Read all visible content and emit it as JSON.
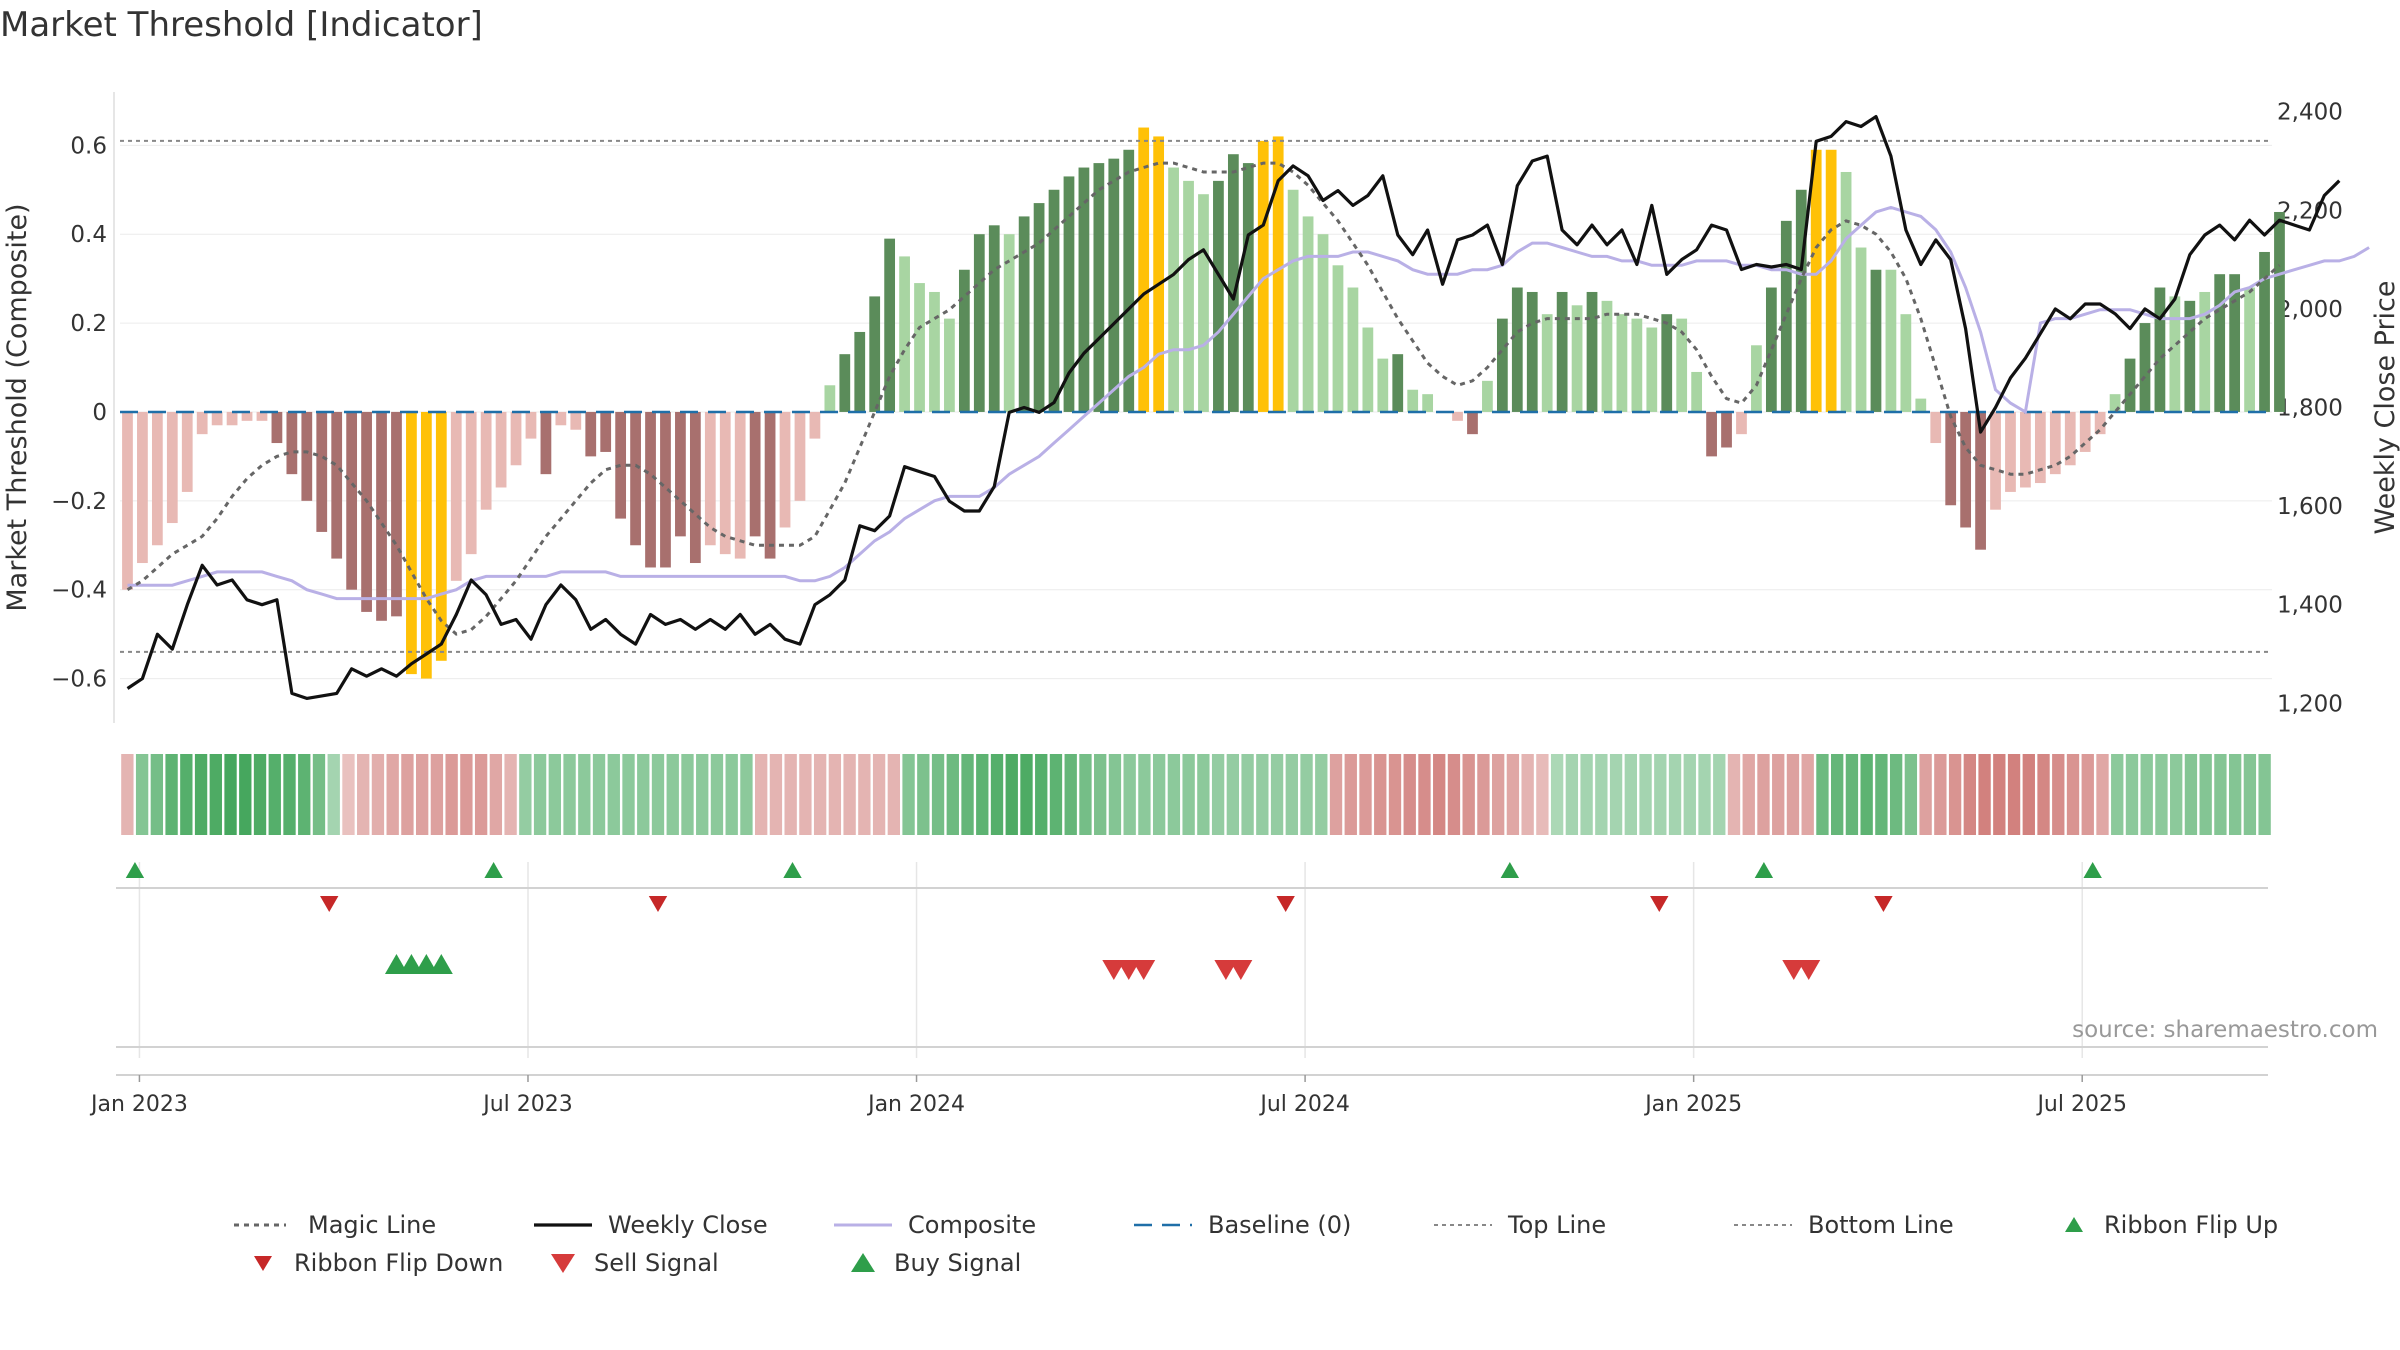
{
  "title": "Market Threshold [Indicator]",
  "source_label": "source: sharemaestro.com",
  "colors": {
    "dark_green": "#5b8c5a",
    "light_green": "#a8d5a2",
    "dark_red": "#a8706e",
    "light_red": "#e8b9b4",
    "gold": "#ffc107",
    "close_line": "#111111",
    "composite_line": "#b9b0e6",
    "magic_line": "#666666",
    "baseline": "#1f6fa8",
    "buy": "#2e9e4a",
    "sell": "#d63b3b",
    "flip_down": "#c62828"
  },
  "chart_data": {
    "type": "line",
    "title": "Market Threshold [Indicator]",
    "ylabel": "Market Threshold (Composite)",
    "ylabel_right": "Weekly Close Price",
    "ylim": [
      -0.7,
      0.72
    ],
    "ylim_right": [
      1160,
      2440
    ],
    "yticks": [
      0.6,
      0.4,
      0.2,
      0,
      -0.2,
      -0.4,
      -0.6
    ],
    "ytick_labels": [
      "0.6",
      "0.4",
      "0.2",
      "0",
      "−0.2",
      "−0.4",
      "−0.6"
    ],
    "yticks_right": [
      2400,
      2200,
      2000,
      1800,
      1600,
      1400,
      1200
    ],
    "ytick_labels_right": [
      "2,400",
      "2,200",
      "2,000",
      "1,800",
      "1,600",
      "1,400",
      "1,200"
    ],
    "x_range_weeks": [
      0,
      144
    ],
    "xticks_weeks": [
      1.3,
      27.3,
      53.3,
      79.3,
      105.3,
      131.3
    ],
    "xtick_labels": [
      "Jan 2023",
      "Jul 2023",
      "Jan 2024",
      "Jul 2024",
      "Jan 2025",
      "Jul 2025"
    ],
    "top_line": 0.61,
    "bottom_line": -0.54,
    "bars": [
      -0.4,
      -0.34,
      -0.3,
      -0.25,
      -0.18,
      -0.05,
      -0.03,
      -0.03,
      -0.02,
      -0.02,
      -0.07,
      -0.14,
      -0.2,
      -0.27,
      -0.33,
      -0.4,
      -0.45,
      -0.47,
      -0.46,
      -0.59,
      -0.6,
      -0.56,
      -0.38,
      -0.32,
      -0.22,
      -0.17,
      -0.12,
      -0.06,
      -0.14,
      -0.03,
      -0.04,
      -0.1,
      -0.09,
      -0.24,
      -0.3,
      -0.35,
      -0.35,
      -0.28,
      -0.34,
      -0.3,
      -0.32,
      -0.33,
      -0.28,
      -0.33,
      -0.26,
      -0.2,
      -0.06,
      0.06,
      0.13,
      0.18,
      0.26,
      0.39,
      0.35,
      0.29,
      0.27,
      0.21,
      0.32,
      0.4,
      0.42,
      0.4,
      0.44,
      0.47,
      0.5,
      0.53,
      0.55,
      0.56,
      0.57,
      0.59,
      0.64,
      0.62,
      0.55,
      0.52,
      0.49,
      0.52,
      0.58,
      0.56,
      0.61,
      0.62,
      0.5,
      0.44,
      0.4,
      0.33,
      0.28,
      0.19,
      0.12,
      0.13,
      0.05,
      0.04,
      0.0,
      -0.02,
      -0.05,
      0.07,
      0.21,
      0.28,
      0.27,
      0.22,
      0.27,
      0.24,
      0.27,
      0.25,
      0.22,
      0.21,
      0.19,
      0.22,
      0.21,
      0.09,
      -0.1,
      -0.08,
      -0.05,
      0.15,
      0.28,
      0.43,
      0.5,
      0.59,
      0.59,
      0.54,
      0.37,
      0.32,
      0.32,
      0.22,
      0.03,
      -0.07,
      -0.21,
      -0.26,
      -0.31,
      -0.22,
      -0.18,
      -0.17,
      -0.16,
      -0.14,
      -0.12,
      -0.09,
      -0.05,
      0.04,
      0.12,
      0.2,
      0.28,
      0.26,
      0.25,
      0.27,
      0.31,
      0.31,
      0.28,
      0.36,
      0.45
    ],
    "bar_styles": [
      "lr",
      "lr",
      "lr",
      "lr",
      "lr",
      "lr",
      "lr",
      "lr",
      "lr",
      "lr",
      "dr",
      "dr",
      "dr",
      "dr",
      "dr",
      "dr",
      "dr",
      "dr",
      "dr",
      "g",
      "g",
      "g",
      "lr",
      "lr",
      "lr",
      "lr",
      "lr",
      "lr",
      "dr",
      "lr",
      "lr",
      "dr",
      "dr",
      "dr",
      "dr",
      "dr",
      "dr",
      "dr",
      "dr",
      "lr",
      "lr",
      "lr",
      "dr",
      "dr",
      "lr",
      "lr",
      "lr",
      "lg",
      "dg",
      "dg",
      "dg",
      "dg",
      "lg",
      "lg",
      "lg",
      "lg",
      "dg",
      "dg",
      "dg",
      "lg",
      "dg",
      "dg",
      "dg",
      "dg",
      "dg",
      "dg",
      "dg",
      "dg",
      "g",
      "g",
      "lg",
      "lg",
      "lg",
      "dg",
      "dg",
      "dg",
      "g",
      "g",
      "lg",
      "lg",
      "lg",
      "lg",
      "lg",
      "lg",
      "lg",
      "dg",
      "lg",
      "lg",
      "lg",
      "lr",
      "dr",
      "lg",
      "dg",
      "dg",
      "dg",
      "lg",
      "dg",
      "lg",
      "dg",
      "lg",
      "lg",
      "lg",
      "lg",
      "dg",
      "lg",
      "lg",
      "dr",
      "dr",
      "lr",
      "lg",
      "dg",
      "dg",
      "dg",
      "g",
      "g",
      "lg",
      "lg",
      "dg",
      "lg",
      "lg",
      "lg",
      "lr",
      "dr",
      "dr",
      "dr",
      "lr",
      "lr",
      "lr",
      "lr",
      "lr",
      "lr",
      "lr",
      "lr",
      "lg",
      "dg",
      "dg",
      "dg",
      "lg",
      "dg",
      "lg",
      "dg",
      "dg",
      "lg",
      "dg",
      "dg"
    ],
    "series": [
      {
        "name": "Magic Line",
        "axis": "left",
        "values": [
          -0.4,
          -0.38,
          -0.35,
          -0.32,
          -0.3,
          -0.28,
          -0.24,
          -0.19,
          -0.15,
          -0.12,
          -0.1,
          -0.09,
          -0.09,
          -0.1,
          -0.12,
          -0.16,
          -0.2,
          -0.25,
          -0.3,
          -0.36,
          -0.42,
          -0.47,
          -0.5,
          -0.49,
          -0.46,
          -0.42,
          -0.38,
          -0.33,
          -0.28,
          -0.24,
          -0.2,
          -0.16,
          -0.13,
          -0.12,
          -0.12,
          -0.14,
          -0.17,
          -0.2,
          -0.23,
          -0.26,
          -0.28,
          -0.29,
          -0.3,
          -0.3,
          -0.3,
          -0.3,
          -0.28,
          -0.22,
          -0.16,
          -0.08,
          0.0,
          0.08,
          0.14,
          0.19,
          0.21,
          0.23,
          0.26,
          0.29,
          0.32,
          0.34,
          0.36,
          0.38,
          0.41,
          0.44,
          0.47,
          0.5,
          0.52,
          0.54,
          0.55,
          0.56,
          0.56,
          0.55,
          0.54,
          0.54,
          0.54,
          0.55,
          0.56,
          0.56,
          0.54,
          0.51,
          0.47,
          0.43,
          0.38,
          0.33,
          0.27,
          0.21,
          0.16,
          0.11,
          0.08,
          0.06,
          0.07,
          0.1,
          0.14,
          0.18,
          0.2,
          0.21,
          0.21,
          0.21,
          0.21,
          0.22,
          0.22,
          0.22,
          0.21,
          0.2,
          0.18,
          0.14,
          0.08,
          0.03,
          0.02,
          0.06,
          0.14,
          0.22,
          0.3,
          0.37,
          0.41,
          0.43,
          0.42,
          0.4,
          0.36,
          0.3,
          0.21,
          0.1,
          -0.01,
          -0.08,
          -0.12,
          -0.13,
          -0.14,
          -0.14,
          -0.13,
          -0.12,
          -0.1,
          -0.07,
          -0.04,
          0.0,
          0.04,
          0.08,
          0.12,
          0.15,
          0.18,
          0.21,
          0.23,
          0.25,
          0.27,
          0.3,
          0.33
        ]
      },
      {
        "name": "Weekly Close",
        "axis": "right",
        "values": [
          1230,
          1250,
          1340,
          1310,
          1400,
          1480,
          1440,
          1450,
          1410,
          1400,
          1410,
          1220,
          1210,
          1215,
          1220,
          1270,
          1255,
          1270,
          1255,
          1280,
          1300,
          1320,
          1380,
          1450,
          1420,
          1360,
          1370,
          1330,
          1400,
          1440,
          1410,
          1350,
          1370,
          1340,
          1320,
          1380,
          1360,
          1370,
          1350,
          1370,
          1350,
          1380,
          1340,
          1360,
          1330,
          1320,
          1400,
          1420,
          1450,
          1560,
          1550,
          1580,
          1680,
          1670,
          1660,
          1610,
          1590,
          1590,
          1640,
          1790,
          1800,
          1790,
          1810,
          1870,
          1910,
          1940,
          1970,
          2000,
          2030,
          2050,
          2070,
          2100,
          2120,
          2070,
          2020,
          2150,
          2170,
          2260,
          2290,
          2270,
          2220,
          2240,
          2210,
          2230,
          2270,
          2150,
          2110,
          2160,
          2050,
          2140,
          2150,
          2170,
          2090,
          2250,
          2300,
          2310,
          2160,
          2130,
          2170,
          2130,
          2160,
          2090,
          2210,
          2070,
          2100,
          2120,
          2170,
          2160,
          2080,
          2090,
          2085,
          2090,
          2080,
          2340,
          2350,
          2380,
          2370,
          2390,
          2310,
          2160,
          2090,
          2140,
          2100,
          1960,
          1750,
          1800,
          1860,
          1900,
          1950,
          2000,
          1980,
          2010,
          2010,
          1990,
          1960,
          2000,
          1980,
          2020,
          2110,
          2150,
          2170,
          2140,
          2180,
          2150,
          2180,
          2170,
          2160,
          2230,
          2260
        ],
        "__values_note": ""
      },
      {
        "name": "Composite",
        "axis": "left",
        "values": [
          -0.39,
          -0.39,
          -0.39,
          -0.39,
          -0.38,
          -0.37,
          -0.36,
          -0.36,
          -0.36,
          -0.36,
          -0.37,
          -0.38,
          -0.4,
          -0.41,
          -0.42,
          -0.42,
          -0.42,
          -0.42,
          -0.42,
          -0.42,
          -0.42,
          -0.41,
          -0.4,
          -0.38,
          -0.37,
          -0.37,
          -0.37,
          -0.37,
          -0.37,
          -0.36,
          -0.36,
          -0.36,
          -0.36,
          -0.37,
          -0.37,
          -0.37,
          -0.37,
          -0.37,
          -0.37,
          -0.37,
          -0.37,
          -0.37,
          -0.37,
          -0.37,
          -0.37,
          -0.38,
          -0.38,
          -0.37,
          -0.35,
          -0.32,
          -0.29,
          -0.27,
          -0.24,
          -0.22,
          -0.2,
          -0.19,
          -0.19,
          -0.19,
          -0.17,
          -0.14,
          -0.12,
          -0.1,
          -0.07,
          -0.04,
          -0.01,
          0.02,
          0.05,
          0.08,
          0.1,
          0.13,
          0.14,
          0.14,
          0.15,
          0.18,
          0.22,
          0.26,
          0.3,
          0.32,
          0.34,
          0.35,
          0.35,
          0.35,
          0.36,
          0.36,
          0.35,
          0.34,
          0.32,
          0.31,
          0.31,
          0.31,
          0.32,
          0.32,
          0.33,
          0.36,
          0.38,
          0.38,
          0.37,
          0.36,
          0.35,
          0.35,
          0.34,
          0.34,
          0.33,
          0.33,
          0.33,
          0.34,
          0.34,
          0.34,
          0.33,
          0.33,
          0.32,
          0.32,
          0.31,
          0.31,
          0.34,
          0.39,
          0.42,
          0.45,
          0.46,
          0.45,
          0.44,
          0.41,
          0.36,
          0.28,
          0.18,
          0.05,
          0.02,
          0.0,
          0.2,
          0.21,
          0.21,
          0.22,
          0.23,
          0.23,
          0.23,
          0.22,
          0.21,
          0.21,
          0.21,
          0.22,
          0.24,
          0.27,
          0.28,
          0.3,
          0.31,
          0.32,
          0.33,
          0.34,
          0.34,
          0.35,
          0.37
        ]
      }
    ],
    "ribbon": [
      -0.3,
      0.5,
      0.6,
      0.75,
      0.8,
      0.85,
      0.85,
      0.9,
      0.9,
      0.85,
      0.8,
      0.8,
      0.75,
      0.6,
      0.3,
      -0.2,
      -0.3,
      -0.35,
      -0.4,
      -0.45,
      -0.45,
      -0.45,
      -0.5,
      -0.5,
      -0.5,
      -0.4,
      -0.3,
      0.4,
      0.45,
      0.45,
      0.45,
      0.45,
      0.45,
      0.45,
      0.45,
      0.45,
      0.45,
      0.45,
      0.45,
      0.45,
      0.45,
      0.45,
      0.45,
      -0.3,
      -0.3,
      -0.3,
      -0.3,
      -0.3,
      -0.3,
      -0.3,
      -0.3,
      -0.3,
      -0.3,
      0.5,
      0.55,
      0.6,
      0.65,
      0.7,
      0.75,
      0.8,
      0.85,
      0.85,
      0.8,
      0.75,
      0.7,
      0.6,
      0.55,
      0.5,
      0.45,
      0.45,
      0.45,
      0.45,
      0.45,
      0.45,
      0.4,
      0.4,
      0.4,
      0.4,
      0.4,
      0.4,
      0.4,
      0.4,
      -0.45,
      -0.5,
      -0.5,
      -0.55,
      -0.55,
      -0.6,
      -0.6,
      -0.65,
      -0.6,
      -0.55,
      -0.5,
      -0.45,
      -0.4,
      -0.3,
      -0.25,
      0.25,
      0.3,
      0.3,
      0.3,
      0.3,
      0.3,
      0.3,
      0.3,
      0.3,
      0.3,
      0.3,
      0.3,
      -0.3,
      -0.4,
      -0.45,
      -0.45,
      -0.45,
      -0.4,
      0.65,
      0.7,
      0.7,
      0.75,
      0.7,
      0.65,
      0.55,
      -0.45,
      -0.5,
      -0.55,
      -0.65,
      -0.7,
      -0.7,
      -0.7,
      -0.7,
      -0.65,
      -0.6,
      -0.55,
      -0.5,
      -0.4,
      0.45,
      0.45,
      0.45,
      0.45,
      0.45,
      0.5,
      0.5,
      0.5,
      0.5,
      0.5,
      0.5
    ],
    "ribbon_flip_up_weeks": [
      1,
      25,
      45,
      93,
      110,
      132
    ],
    "ribbon_flip_down_weeks": [
      14,
      36,
      78,
      103,
      118
    ],
    "buy_signal_weeks": [
      18.5,
      19.5,
      20.5,
      21.5
    ],
    "sell_signal_weeks": [
      66.5,
      67.5,
      68.5,
      74,
      75,
      112,
      113
    ],
    "legend": [
      {
        "label": "Magic Line",
        "kind": "dotted"
      },
      {
        "label": "Weekly Close",
        "kind": "line"
      },
      {
        "label": "Composite",
        "kind": "composite"
      },
      {
        "label": "Baseline (0)",
        "kind": "dashed"
      },
      {
        "label": "Top Line",
        "kind": "thindotted"
      },
      {
        "label": "Bottom Line",
        "kind": "thindotted"
      },
      {
        "label": "Ribbon Flip Up",
        "kind": "flipup"
      },
      {
        "label": "Ribbon Flip Down",
        "kind": "flipdown"
      },
      {
        "label": "Sell Signal",
        "kind": "sell"
      },
      {
        "label": "Buy Signal",
        "kind": "buy"
      }
    ],
    "legend_position": "bottom",
    "grid": true
  }
}
